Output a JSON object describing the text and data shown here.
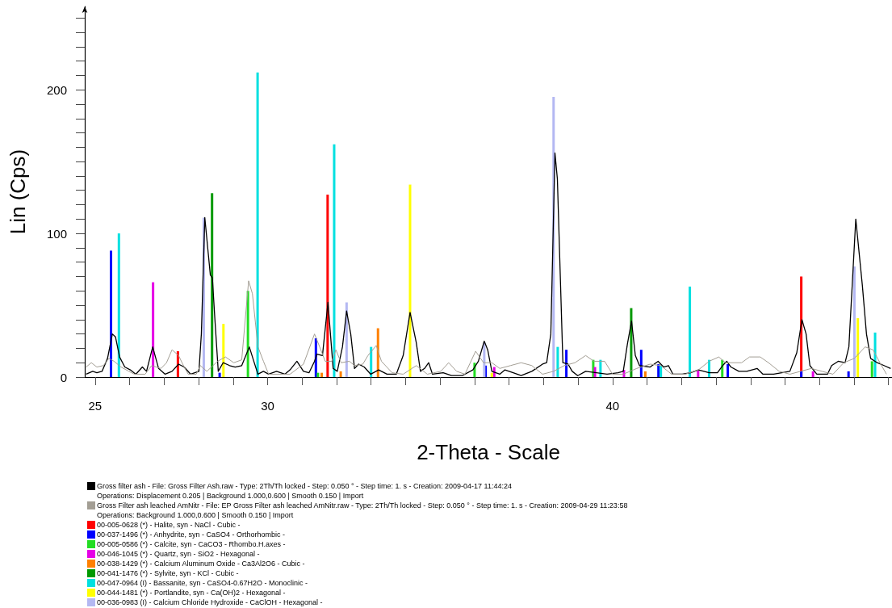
{
  "chart_data": {
    "type": "line",
    "xlabel": "2-Theta - Scale",
    "ylabel": "Lin (Cps)",
    "xlim": [
      24.7,
      48.1
    ],
    "ylim": [
      0,
      258
    ],
    "xticks": [
      25,
      {
        "value": 26,
        "label": null
      },
      {
        "value": 27,
        "label": null
      },
      {
        "value": 28,
        "label": null
      },
      {
        "value": 29,
        "label": null
      },
      30,
      {
        "value": 31,
        "label": null
      },
      {
        "value": 32,
        "label": null
      },
      {
        "value": 33,
        "label": null
      },
      {
        "value": 34,
        "label": null
      },
      {
        "value": 35,
        "label": null
      },
      {
        "value": 36,
        "label": null
      },
      {
        "value": 37,
        "label": null
      },
      {
        "value": 38,
        "label": null
      },
      {
        "value": 39,
        "label": null
      },
      40,
      {
        "value": 41,
        "label": null
      },
      {
        "value": 42,
        "label": null
      },
      {
        "value": 43,
        "label": null
      },
      {
        "value": 44,
        "label": null
      },
      {
        "value": 45,
        "label": null
      },
      {
        "value": 46,
        "label": null
      },
      {
        "value": 47,
        "label": null
      },
      {
        "value": 48,
        "label": null
      }
    ],
    "yticks": [
      0,
      {
        "value": 10,
        "label": null
      },
      {
        "value": 20,
        "label": null
      },
      {
        "value": 30,
        "label": null
      },
      {
        "value": 40,
        "label": null
      },
      {
        "value": 50,
        "label": null
      },
      {
        "value": 60,
        "label": null
      },
      {
        "value": 70,
        "label": null
      },
      {
        "value": 80,
        "label": null
      },
      {
        "value": 90,
        "label": null
      },
      100,
      {
        "value": 110,
        "label": null
      },
      {
        "value": 120,
        "label": null
      },
      {
        "value": 130,
        "label": null
      },
      {
        "value": 140,
        "label": null
      },
      {
        "value": 150,
        "label": null
      },
      {
        "value": 160,
        "label": null
      },
      {
        "value": 170,
        "label": null
      },
      {
        "value": 180,
        "label": null
      },
      {
        "value": 190,
        "label": null
      },
      200,
      {
        "value": 210,
        "label": null
      },
      {
        "value": 220,
        "label": null
      },
      {
        "value": 230,
        "label": null
      },
      {
        "value": 240,
        "label": null
      },
      {
        "value": 250,
        "label": null
      }
    ],
    "legend": "bottom",
    "marker": "none",
    "line_style": "solid",
    "annotations": [
      "Operations: Displacement 0.205 | Background 1.000,0.600 | Smooth 0.150 | Import",
      "Operations: Background 1.000,0.600 | Smooth 0.150 | Import"
    ],
    "series": [
      {
        "name": "Gross filter ash - File: Gross Filter Ash.raw - Type: 2Th/Th locked - Step: 0.050 ° - Step time: 1. s - Creation: 2009-04-17 11:44:24",
        "color": "#000000",
        "x": [
          24.74,
          24.93,
          25.05,
          25.2,
          25.36,
          25.5,
          25.59,
          25.71,
          25.86,
          26.02,
          26.18,
          26.37,
          26.49,
          26.67,
          26.84,
          27.03,
          27.23,
          27.42,
          27.58,
          27.77,
          28.01,
          28.08,
          28.18,
          28.28,
          28.34,
          28.4,
          28.47,
          28.57,
          28.71,
          28.9,
          29.06,
          29.25,
          29.47,
          29.6,
          29.72,
          29.88,
          30.03,
          30.26,
          30.5,
          30.65,
          30.85,
          31.04,
          31.2,
          31.36,
          31.43,
          31.59,
          31.75,
          31.9,
          32.02,
          32.17,
          32.29,
          32.41,
          32.52,
          32.64,
          32.8,
          32.99,
          33.22,
          33.46,
          33.73,
          33.93,
          34.13,
          34.31,
          34.43,
          34.55,
          34.67,
          34.78,
          35.09,
          35.33,
          35.64,
          35.95,
          36.11,
          36.28,
          36.38,
          36.5,
          36.73,
          36.88,
          37.12,
          37.35,
          37.66,
          37.97,
          38.09,
          38.21,
          38.33,
          38.4,
          38.56,
          38.71,
          38.83,
          38.99,
          39.22,
          39.53,
          39.84,
          40.16,
          40.31,
          40.43,
          40.55,
          40.66,
          40.78,
          41.09,
          41.32,
          41.48,
          41.62,
          41.75,
          42.02,
          42.26,
          42.49,
          42.8,
          43.04,
          43.19,
          43.31,
          43.43,
          43.66,
          43.89,
          44.19,
          44.36,
          44.67,
          45.14,
          45.34,
          45.49,
          45.61,
          45.72,
          45.92,
          46.23,
          46.35,
          46.54,
          46.74,
          46.85,
          47.05,
          47.24,
          47.36,
          47.48,
          47.67,
          47.87,
          48.06
        ],
        "values": [
          2,
          4,
          3,
          4,
          13,
          30,
          28,
          14,
          7,
          5,
          2,
          7,
          4,
          21,
          6,
          2,
          4,
          9,
          7,
          2,
          4,
          30,
          111,
          86,
          71,
          69,
          41,
          4,
          10,
          8,
          7,
          8,
          21,
          11,
          2,
          4,
          2,
          4,
          2,
          5,
          11,
          4,
          3,
          11,
          16,
          15,
          52,
          6,
          4,
          21,
          46,
          30,
          6,
          9,
          7,
          2,
          5,
          2,
          2,
          15,
          45,
          24,
          4,
          6,
          10,
          2,
          3,
          1,
          1,
          5,
          11,
          25,
          19,
          4,
          2,
          5,
          3,
          1,
          4,
          9,
          10,
          30,
          156,
          138,
          10,
          9,
          4,
          1,
          4,
          3,
          2,
          3,
          4,
          23,
          39,
          15,
          8,
          7,
          11,
          7,
          8,
          2,
          2,
          3,
          5,
          3,
          3,
          8,
          11,
          7,
          4,
          4,
          6,
          2,
          2,
          4,
          17,
          40,
          30,
          8,
          2,
          2,
          8,
          11,
          10,
          21,
          110,
          64,
          30,
          13,
          10,
          8,
          6
        ]
      },
      {
        "name": "Gross Filter ash leached AmNitr - File: EP Gross Filter ash leached AmNitr.raw - Type: 2Th/Th locked - Step: 0.050 ° - Step time: 1. s - Creation: 2009-04-29 11:23:58",
        "color": "#a39e94",
        "x": [
          24.74,
          24.89,
          25.05,
          25.24,
          25.4,
          25.55,
          25.75,
          25.98,
          26.14,
          26.45,
          26.64,
          26.91,
          27.07,
          27.23,
          27.42,
          27.54,
          27.7,
          27.93,
          28.05,
          28.24,
          28.55,
          28.78,
          29.02,
          29.25,
          29.45,
          29.56,
          29.72,
          29.88,
          30.03,
          30.34,
          30.65,
          31.04,
          31.36,
          31.51,
          31.67,
          31.86,
          31.98,
          32.13,
          32.37,
          32.52,
          32.76,
          32.91,
          33.15,
          33.3,
          33.61,
          33.93,
          34.31,
          34.63,
          35.02,
          35.25,
          35.48,
          35.72,
          36.03,
          36.26,
          36.5,
          36.73,
          37.04,
          37.35,
          37.66,
          37.97,
          38.29,
          38.6,
          38.91,
          39.22,
          39.46,
          39.77,
          40.0,
          40.31,
          40.7,
          41.09,
          41.4,
          41.71,
          42.1,
          42.49,
          42.8,
          43.08,
          43.27,
          43.74,
          43.97,
          44.28,
          44.52,
          44.83,
          45.14,
          45.45,
          45.76,
          46.07,
          46.39,
          46.7,
          47.01,
          47.32,
          47.55,
          47.75,
          47.94
        ],
        "values": [
          7,
          10,
          7,
          8,
          13,
          11,
          7,
          4,
          2,
          2,
          8,
          6,
          10,
          19,
          15,
          9,
          2,
          2,
          8,
          4,
          11,
          14,
          10,
          12,
          67,
          58,
          21,
          11,
          2,
          2,
          2,
          9,
          30,
          21,
          11,
          11,
          19,
          10,
          11,
          8,
          9,
          15,
          22,
          11,
          3,
          2,
          8,
          2,
          4,
          10,
          4,
          2,
          18,
          10,
          10,
          6,
          8,
          10,
          8,
          2,
          4,
          8,
          10,
          15,
          11,
          11,
          2,
          2,
          6,
          9,
          8,
          2,
          2,
          5,
          11,
          14,
          10,
          10,
          14,
          14,
          10,
          4,
          2,
          4,
          6,
          4,
          2,
          10,
          13,
          21,
          19,
          10,
          2
        ]
      },
      {
        "name": "00-005-0628 (*) - Halite, syn - NaCl - Cubic -",
        "color": "#ff0000",
        "type": "bar",
        "x": [
          27.4,
          31.74,
          45.47
        ],
        "values": [
          18,
          127,
          70
        ]
      },
      {
        "name": "00-037-1496 (*) - Anhydrite, syn - CaSO4 - Orthorhombic -",
        "color": "#0000ff",
        "type": "bar",
        "x": [
          25.46,
          28.61,
          31.4,
          36.32,
          38.66,
          40.83,
          41.33,
          43.34,
          45.47,
          46.84
        ],
        "values": [
          88,
          3,
          27,
          8,
          19,
          19,
          9,
          9,
          4,
          4
        ]
      },
      {
        "name": "00-005-0586 (*) - Calcite, syn - CaCO3 - Rhombo.H.axes -",
        "color": "#22dd22",
        "type": "bar",
        "x": [
          29.43,
          31.46,
          36.0,
          39.44,
          43.18,
          47.52
        ],
        "values": [
          60,
          3,
          10,
          12,
          12,
          11
        ]
      },
      {
        "name": "00-046-1045 (*) - Quartz, syn - SiO2 - Hexagonal -",
        "color": "#e600e6",
        "type": "bar",
        "x": [
          26.68,
          36.57,
          39.49,
          40.33,
          42.48,
          45.81
        ],
        "values": [
          66,
          7,
          7,
          5,
          5,
          4
        ]
      },
      {
        "name": "00-038-1429 (*) - Calcium Aluminum Oxide - Ca3Al2O6 - Cubic -",
        "color": "#ff8000",
        "type": "bar",
        "x": [
          31.57,
          32.12,
          33.2,
          40.95
        ],
        "values": [
          3,
          4,
          34,
          4
        ]
      },
      {
        "name": "00-041-1476 (*) - Sylvite, syn - KCl - Cubic -",
        "color": "#009900",
        "type": "bar",
        "x": [
          28.39,
          40.54
        ],
        "values": [
          128,
          48
        ]
      },
      {
        "name": "00-047-0964 (I) - Bassanite, syn - CaSO4-0.67H2O - Monoclinic -",
        "color": "#00e0e0",
        "type": "bar",
        "x": [
          25.69,
          29.71,
          31.93,
          33.0,
          38.41,
          39.65,
          41.4,
          42.24,
          42.8,
          47.61
        ],
        "values": [
          100,
          212,
          162,
          21,
          21,
          12,
          8,
          63,
          12,
          31
        ]
      },
      {
        "name": "00-044-1481 (*) - Portlandite, syn - Ca(OH)2 - Hexagonal -",
        "color": "#ffff00",
        "type": "bar",
        "x": [
          28.72,
          34.13,
          36.5,
          47.11
        ],
        "values": [
          37,
          134,
          3,
          41
        ]
      },
      {
        "name": "00-036-0983 (I) - Calcium Chloride Hydroxide - CaClOH - Hexagonal -",
        "color": "#b4b8f2",
        "type": "bar",
        "x": [
          28.15,
          32.29,
          36.28,
          38.29,
          47.01
        ],
        "values": [
          111,
          52,
          24,
          195,
          77
        ]
      }
    ]
  }
}
